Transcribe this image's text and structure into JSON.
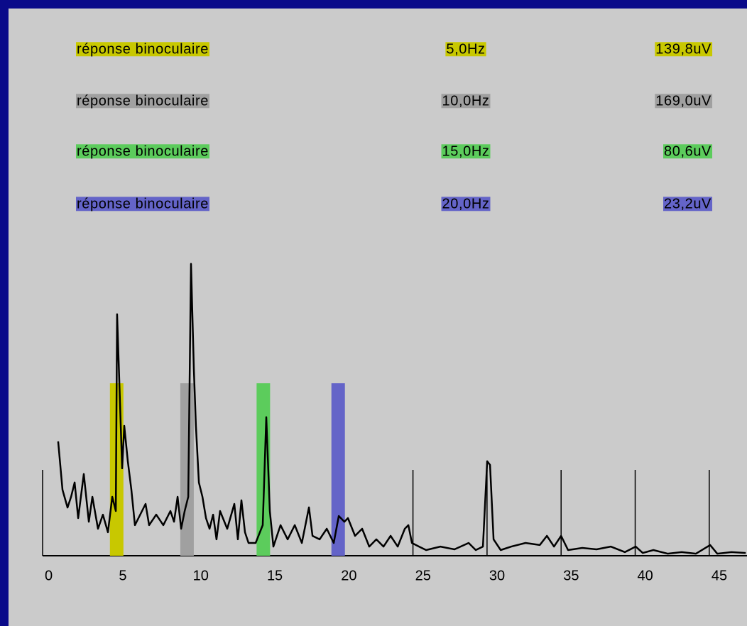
{
  "chart_data": {
    "type": "line",
    "markers": [
      {
        "name": "réponse binoculaire",
        "color": "#c8c800",
        "frequency": 5,
        "frequency_label": "5,0Hz",
        "amplitude_label": "139,8uV"
      },
      {
        "name": "réponse binoculaire",
        "color": "#a0a0a0",
        "frequency": 9.75,
        "frequency_label": "10,0Hz",
        "amplitude_label": "169,0uV"
      },
      {
        "name": "réponse binoculaire",
        "color": "#5ccc5c",
        "frequency": 14.9,
        "frequency_label": "15,0Hz",
        "amplitude_label": "80,6uV"
      },
      {
        "name": "réponse binoculaire",
        "color": "#6464c8",
        "frequency": 19.95,
        "frequency_label": "20,0Hz",
        "amplitude_label": "23,2uV"
      }
    ],
    "x": [
      1.05,
      1.34,
      1.68,
      1.92,
      2.16,
      2.4,
      2.78,
      3.12,
      3.36,
      3.74,
      4.07,
      4.41,
      4.7,
      4.94,
      5.03,
      5.18,
      5.37,
      5.51,
      5.75,
      5.99,
      6.23,
      6.71,
      6.95,
      7.19,
      7.67,
      8.15,
      8.63,
      8.87,
      9.11,
      9.35,
      9.59,
      9.83,
      10.02,
      10.21,
      10.35,
      10.55,
      10.79,
      11.03,
      11.27,
      11.51,
      11.74,
      11.98,
      12.46,
      12.94,
      13.18,
      13.42,
      13.66,
      13.9,
      14.38,
      14.86,
      15.1,
      15.34,
      15.58,
      16.06,
      16.54,
      17.02,
      17.5,
      17.98,
      18.22,
      18.7,
      19.18,
      19.65,
      19.99,
      20.37,
      20.61,
      21.09,
      21.57,
      22.05,
      22.53,
      23.01,
      23.49,
      23.97,
      24.45,
      24.69,
      24.93,
      25.41,
      25.89,
      26.85,
      27.8,
      28.76,
      29.24,
      29.72,
      30.01,
      30.2,
      30.44,
      30.92,
      31.64,
      32.6,
      33.56,
      34.04,
      34.52,
      35.0,
      35.47,
      36.43,
      37.39,
      38.35,
      39.31,
      40.03,
      40.51,
      41.23,
      42.19,
      43.14,
      44.1,
      45.06,
      45.54,
      46.5,
      47.46
    ],
    "values": [
      66.2,
      38.2,
      27.9,
      34.1,
      42.4,
      21.8,
      47.3,
      19.7,
      34.1,
      15.6,
      23.8,
      13.6,
      34.1,
      25.9,
      139.8,
      99.9,
      50.6,
      75.2,
      54.7,
      38.2,
      17.7,
      25.9,
      30.0,
      17.7,
      23.8,
      17.7,
      25.9,
      19.7,
      34.1,
      15.6,
      25.9,
      34.1,
      169.0,
      108.1,
      75.2,
      42.4,
      34.1,
      21.8,
      15.6,
      23.8,
      9.5,
      25.9,
      15.6,
      30.0,
      9.5,
      32.1,
      13.6,
      7.4,
      7.4,
      17.7,
      80.2,
      25.9,
      5.3,
      17.7,
      9.5,
      17.7,
      7.4,
      28.0,
      11.5,
      9.5,
      15.6,
      7.4,
      23.0,
      19.7,
      21.8,
      11.5,
      15.6,
      5.3,
      9.5,
      5.3,
      11.5,
      5.3,
      15.6,
      17.7,
      7.4,
      5.3,
      3.3,
      5.3,
      3.7,
      7.4,
      3.3,
      5.3,
      54.7,
      52.6,
      9.5,
      3.3,
      5.3,
      7.4,
      6.2,
      11.5,
      5.3,
      11.5,
      3.3,
      4.5,
      3.7,
      5.3,
      2.1,
      5.3,
      1.6,
      3.3,
      1.2,
      2.1,
      1.2,
      6.2,
      1.2,
      2.1,
      1.6
    ],
    "color": "#000000",
    "xlim": [
      0,
      47.5
    ],
    "ylim": [
      0,
      300
    ],
    "xticks": [
      0,
      5,
      10,
      15,
      20,
      25,
      30,
      35,
      40,
      45
    ]
  }
}
